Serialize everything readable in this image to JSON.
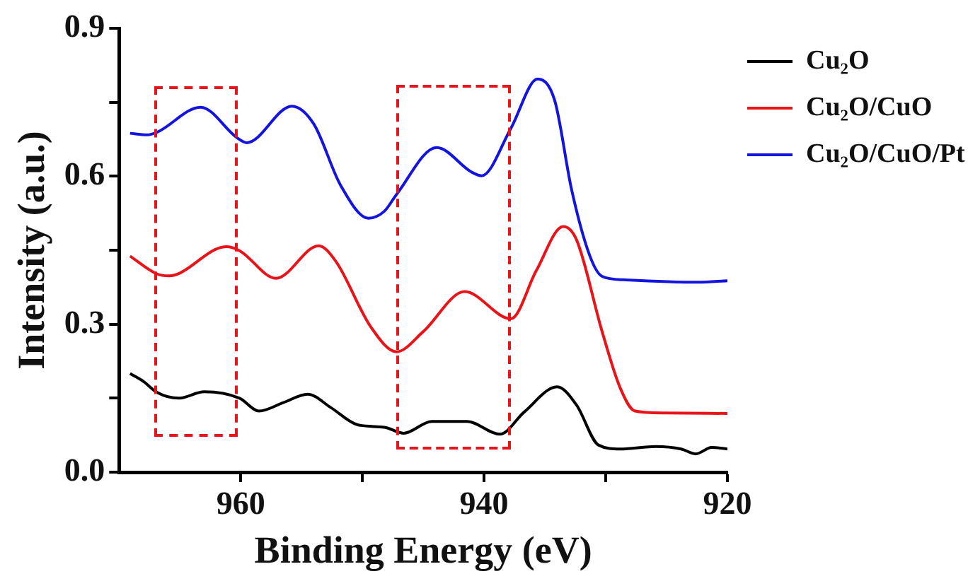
{
  "chart_data": {
    "type": "line",
    "xlabel": "Binding Energy (eV)",
    "ylabel": "Intensity (a.u.)",
    "xlim": [
      970,
      920
    ],
    "xticks": [
      960,
      {
        "value": 950,
        "label": null
      },
      940,
      {
        "value": 930,
        "label": null
      },
      920
    ],
    "ylim": [
      0,
      0.9
    ],
    "yticks": [
      {
        "value": 0,
        "label": "0.0"
      },
      {
        "value": 0.15,
        "label": null
      },
      0.3,
      {
        "value": 0.45,
        "label": null
      },
      0.6,
      {
        "value": 0.75,
        "label": null
      },
      0.9
    ],
    "grid": false,
    "legend": "top right",
    "marker": "none",
    "line_style": "solid",
    "series": [
      {
        "name": "Cu₂O",
        "color": "#000000",
        "x": [
          969.1,
          968.0,
          966.9,
          965.1,
          963.0,
          960.1,
          958.5,
          956.5,
          954.5,
          952.6,
          950.4,
          948.2,
          946.6,
          944.3,
          941.4,
          938.7,
          936.7,
          934.0,
          932.4,
          930.6,
          928.8,
          925.9,
          923.8,
          922.6,
          921.3,
          920.0
        ],
        "values": [
          0.2,
          0.184,
          0.162,
          0.15,
          0.163,
          0.15,
          0.124,
          0.141,
          0.158,
          0.131,
          0.096,
          0.091,
          0.079,
          0.103,
          0.103,
          0.077,
          0.122,
          0.173,
          0.136,
          0.055,
          0.047,
          0.052,
          0.047,
          0.037,
          0.05,
          0.047
        ]
      },
      {
        "name": "Cu₂O/CuO",
        "color": "#e8141a",
        "x": [
          969.1,
          966.9,
          965.9,
          961.2,
          960.1,
          957.1,
          953.6,
          952.2,
          949.3,
          947.2,
          945.0,
          941.6,
          937.8,
          935.7,
          933.5,
          932.4,
          930.3,
          928.8,
          927.6,
          925.2,
          920.0
        ],
        "values": [
          0.438,
          0.402,
          0.398,
          0.457,
          0.449,
          0.393,
          0.459,
          0.428,
          0.294,
          0.244,
          0.285,
          0.366,
          0.311,
          0.409,
          0.498,
          0.471,
          0.285,
          0.17,
          0.124,
          0.12,
          0.119
        ]
      },
      {
        "name": "Cu₂O/CuO/Pt",
        "color": "#1414e0",
        "x": [
          969.1,
          967.7,
          966.9,
          963.3,
          960.3,
          959.5,
          955.8,
          954.0,
          951.8,
          949.5,
          948.2,
          947.2,
          943.9,
          941.0,
          940.2,
          937.8,
          935.6,
          934.2,
          932.8,
          931.3,
          930.3,
          928.5,
          922.4,
          920.0
        ],
        "values": [
          0.687,
          0.684,
          0.689,
          0.74,
          0.678,
          0.668,
          0.742,
          0.706,
          0.582,
          0.515,
          0.529,
          0.563,
          0.658,
          0.608,
          0.601,
          0.697,
          0.797,
          0.754,
          0.572,
          0.438,
          0.397,
          0.39,
          0.385,
          0.388
        ]
      }
    ]
  }
}
